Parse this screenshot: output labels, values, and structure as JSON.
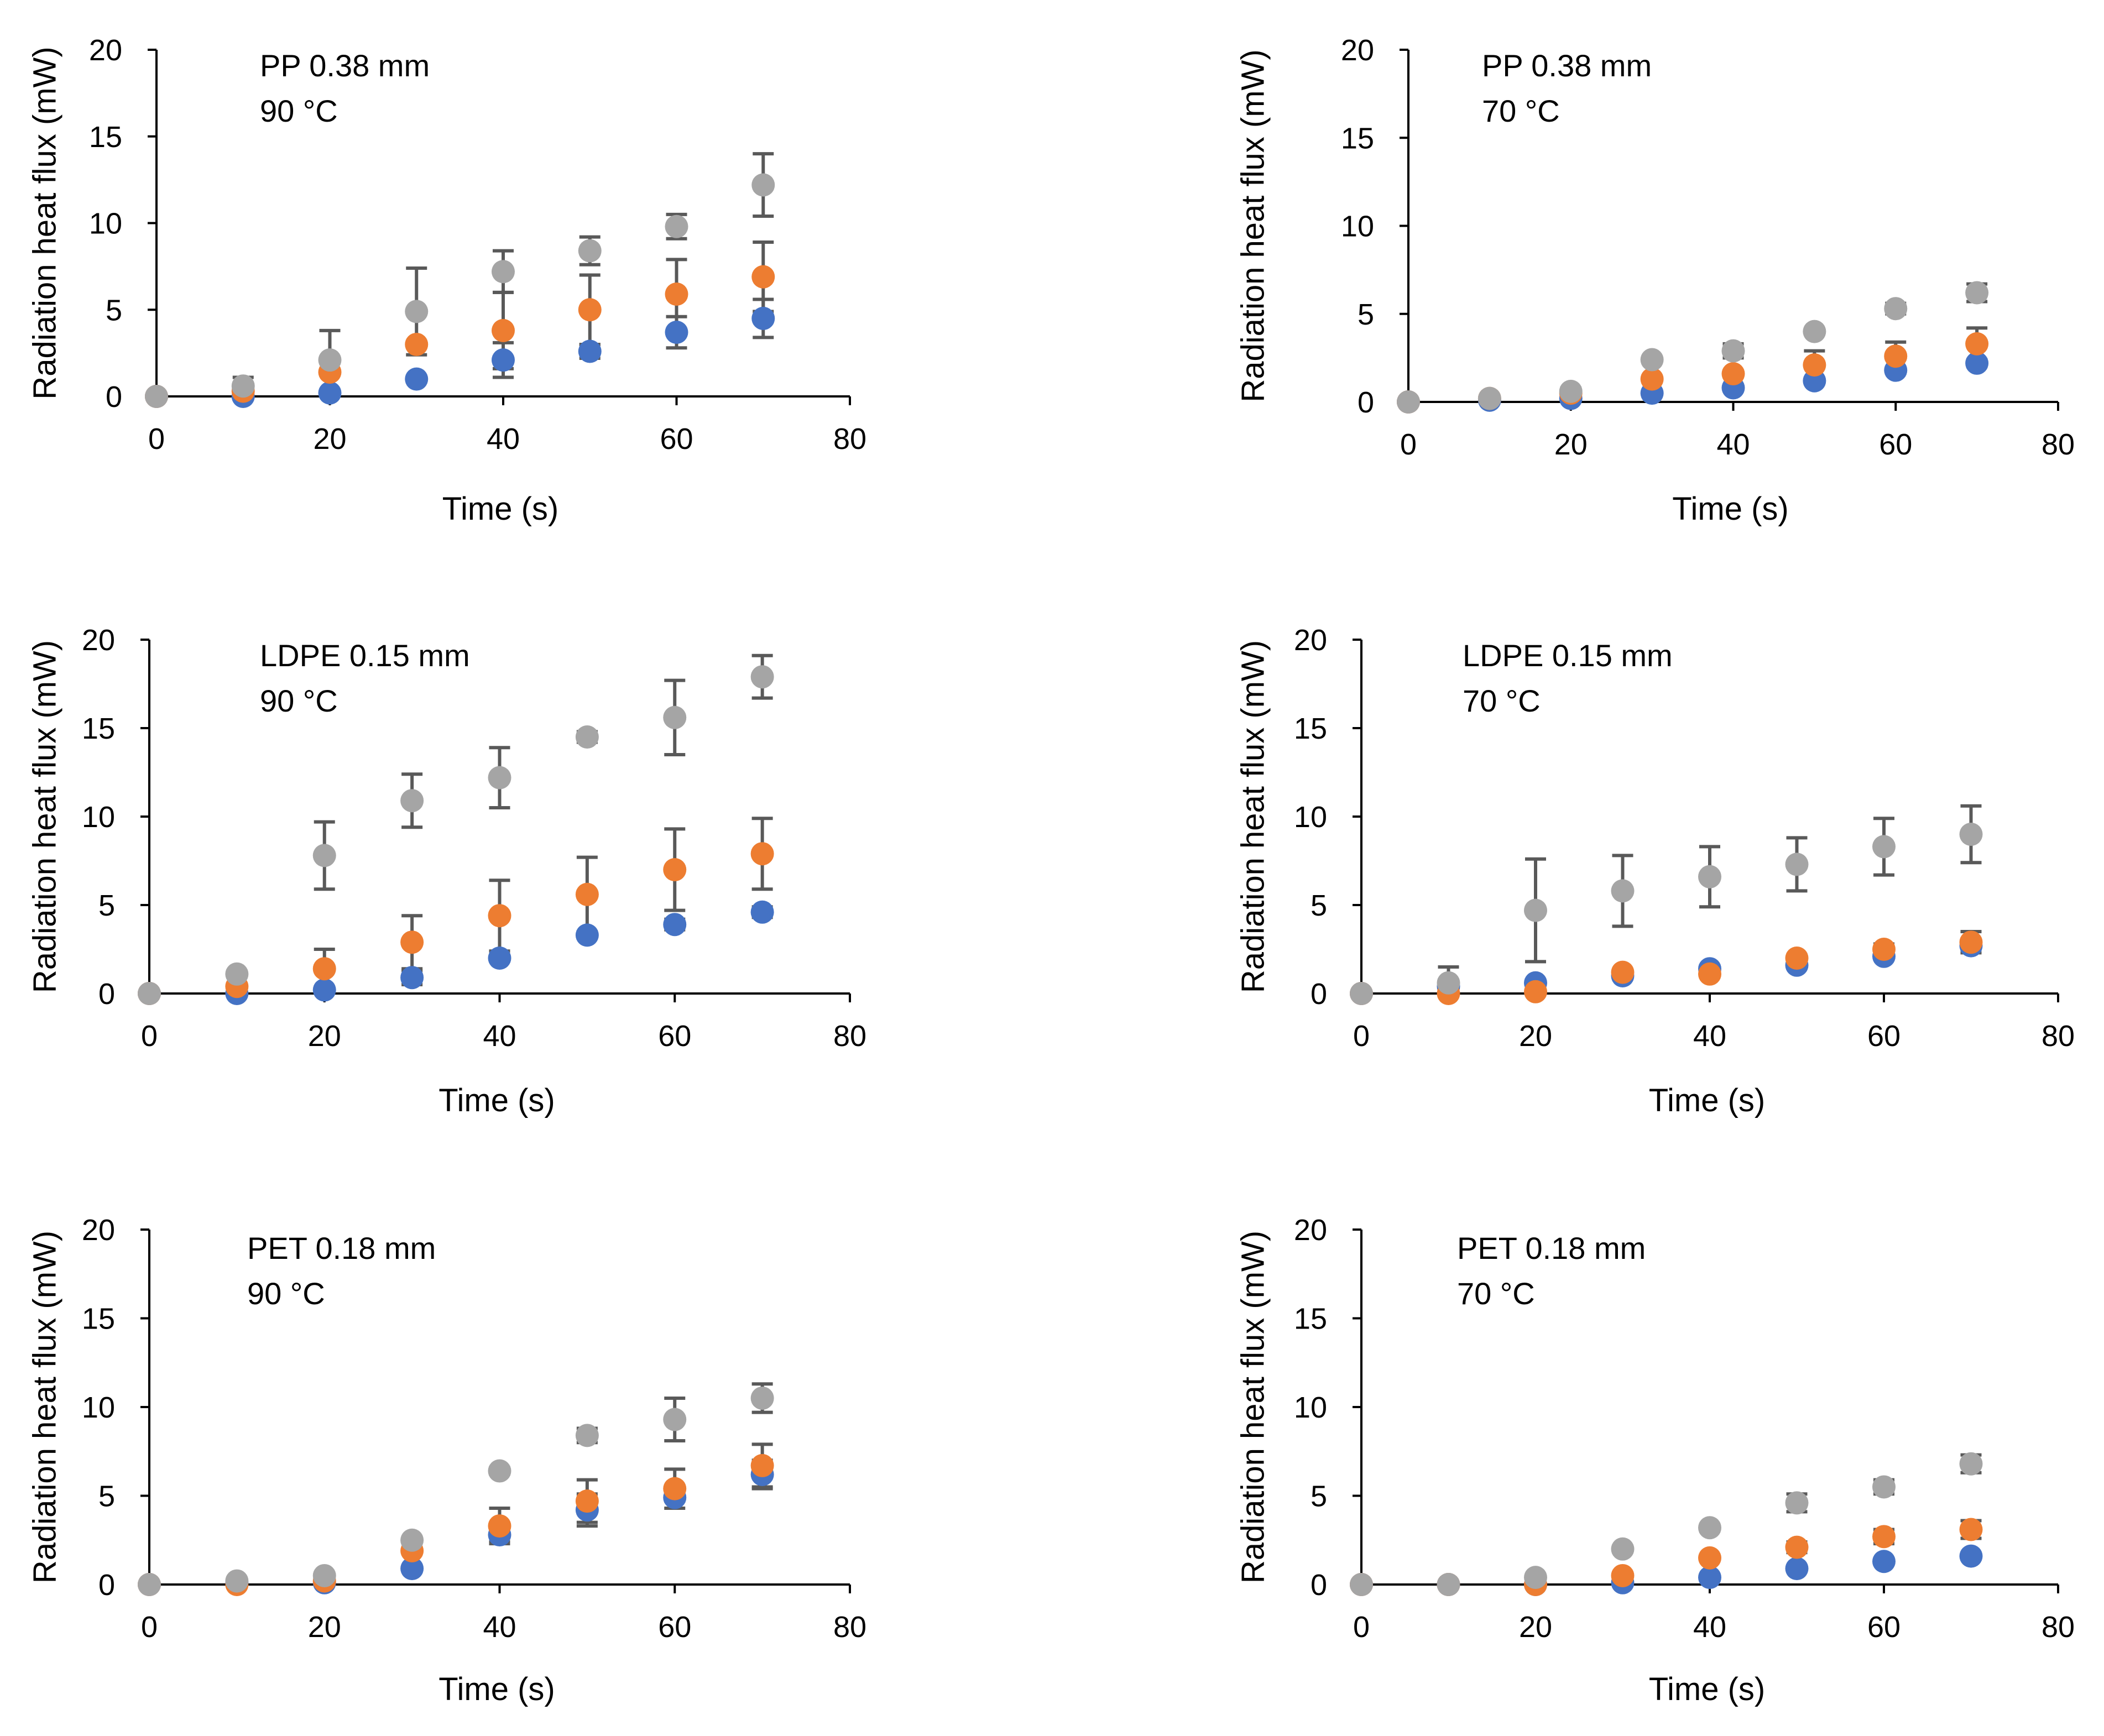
{
  "chart_data": [
    {
      "type": "scatter",
      "annotation": [
        "PP 0.38 mm",
        "90 °C"
      ],
      "xlabel": "Time (s)",
      "ylabel": "Radiation heat flux (mW)",
      "xlim": [
        0,
        80
      ],
      "ylim": [
        0,
        20
      ],
      "xticks": [
        "0",
        "20",
        "40",
        "60",
        "80"
      ],
      "yticks": [
        "0",
        "5",
        "10",
        "15",
        "20"
      ],
      "x": [
        0,
        10,
        20,
        30,
        40,
        50,
        60,
        70
      ],
      "series": [
        {
          "name": "blue",
          "color": "#4472C4",
          "values": [
            0,
            0,
            0.2,
            1.0,
            2.1,
            2.6,
            3.7,
            4.5
          ],
          "errors": [
            0,
            0,
            0,
            0,
            1.0,
            0.4,
            0.9,
            1.1
          ]
        },
        {
          "name": "orange",
          "color": "#ED7D31",
          "values": [
            0,
            0.3,
            1.4,
            3.0,
            3.8,
            5.0,
            5.9,
            6.9
          ],
          "errors": [
            0,
            0,
            0,
            0,
            2.2,
            2.0,
            2.0,
            2.0
          ]
        },
        {
          "name": "gray",
          "color": "#A5A5A5",
          "values": [
            0,
            0.6,
            2.1,
            4.9,
            7.2,
            8.4,
            9.8,
            12.2
          ],
          "errors": [
            0,
            0.5,
            1.7,
            2.5,
            1.2,
            0.8,
            0.7,
            1.8
          ]
        }
      ]
    },
    {
      "type": "scatter",
      "annotation": [
        "PP 0.38 mm",
        "70 °C"
      ],
      "xlabel": "Time (s)",
      "ylabel": "Radiation heat flux (mW)",
      "xlim": [
        0,
        80
      ],
      "ylim": [
        0,
        20
      ],
      "xticks": [
        "0",
        "20",
        "40",
        "60",
        "80"
      ],
      "yticks": [
        "0",
        "5",
        "10",
        "15",
        "20"
      ],
      "x": [
        0,
        10,
        20,
        30,
        40,
        50,
        60,
        70
      ],
      "series": [
        {
          "name": "blue",
          "color": "#4472C4",
          "values": [
            0,
            0.1,
            0.2,
            0.5,
            0.8,
            1.2,
            1.8,
            2.2
          ],
          "errors": [
            0,
            0,
            0,
            0,
            0,
            0,
            0,
            0.2
          ]
        },
        {
          "name": "orange",
          "color": "#ED7D31",
          "values": [
            0,
            0.2,
            0.5,
            1.3,
            1.6,
            2.1,
            2.6,
            3.3
          ],
          "errors": [
            0,
            0,
            0,
            0,
            0,
            0.8,
            0.8,
            0.9
          ]
        },
        {
          "name": "gray",
          "color": "#A5A5A5",
          "values": [
            0,
            0.2,
            0.6,
            2.4,
            2.9,
            4.0,
            5.3,
            6.2
          ],
          "errors": [
            0,
            0,
            0.2,
            0,
            0.4,
            0,
            0.3,
            0.5
          ]
        }
      ]
    },
    {
      "type": "scatter",
      "annotation": [
        "LDPE 0.15 mm",
        "90 °C"
      ],
      "xlabel": "Time (s)",
      "ylabel": "Radiation heat flux (mW)",
      "xlim": [
        0,
        80
      ],
      "ylim": [
        0,
        20
      ],
      "xticks": [
        "0",
        "20",
        "40",
        "60",
        "80"
      ],
      "yticks": [
        "0",
        "5",
        "10",
        "15",
        "20"
      ],
      "x": [
        0,
        10,
        20,
        30,
        40,
        50,
        60,
        70
      ],
      "series": [
        {
          "name": "blue",
          "color": "#4472C4",
          "values": [
            0,
            0,
            0.2,
            0.9,
            2.0,
            3.3,
            3.9,
            4.6
          ],
          "errors": [
            0,
            0,
            0,
            0.4,
            0,
            0,
            0.3,
            0.3
          ]
        },
        {
          "name": "orange",
          "color": "#ED7D31",
          "values": [
            0,
            0.4,
            1.4,
            2.9,
            4.4,
            5.6,
            7.0,
            7.9
          ],
          "errors": [
            0,
            0,
            1.1,
            1.5,
            2.0,
            2.1,
            2.3,
            2.0
          ]
        },
        {
          "name": "gray",
          "color": "#A5A5A5",
          "values": [
            0,
            1.1,
            7.8,
            10.9,
            12.2,
            14.5,
            15.6,
            17.9
          ],
          "errors": [
            0,
            0,
            1.9,
            1.5,
            1.7,
            0.3,
            2.1,
            1.2
          ]
        }
      ]
    },
    {
      "type": "scatter",
      "annotation": [
        "LDPE 0.15 mm",
        "70 °C"
      ],
      "xlabel": "Time (s)",
      "ylabel": "Radiation heat flux (mW)",
      "xlim": [
        0,
        80
      ],
      "ylim": [
        0,
        20
      ],
      "xticks": [
        "0",
        "20",
        "40",
        "60",
        "80"
      ],
      "yticks": [
        "0",
        "5",
        "10",
        "15",
        "20"
      ],
      "x": [
        0,
        10,
        20,
        30,
        40,
        50,
        60,
        70
      ],
      "series": [
        {
          "name": "blue",
          "color": "#4472C4",
          "values": [
            0,
            0.4,
            0.6,
            1.0,
            1.4,
            1.6,
            2.1,
            2.7
          ],
          "errors": [
            0,
            0,
            0,
            0,
            0,
            0,
            0,
            0.2
          ]
        },
        {
          "name": "orange",
          "color": "#ED7D31",
          "values": [
            0,
            0,
            0.1,
            1.2,
            1.1,
            2.0,
            2.5,
            2.9
          ],
          "errors": [
            0,
            0,
            0,
            0,
            0,
            0.2,
            0.3,
            0.6
          ]
        },
        {
          "name": "gray",
          "color": "#A5A5A5",
          "values": [
            0,
            0.6,
            4.7,
            5.8,
            6.6,
            7.3,
            8.3,
            9.0
          ],
          "errors": [
            0,
            0.9,
            2.9,
            2.0,
            1.7,
            1.5,
            1.6,
            1.6
          ]
        }
      ]
    },
    {
      "type": "scatter",
      "annotation": [
        "PET 0.18 mm",
        "90 °C"
      ],
      "xlabel": "Time (s)",
      "ylabel": "Radiation heat flux (mW)",
      "xlim": [
        0,
        80
      ],
      "ylim": [
        0,
        20
      ],
      "xticks": [
        "0",
        "20",
        "40",
        "60",
        "80"
      ],
      "yticks": [
        "0",
        "5",
        "10",
        "15",
        "20"
      ],
      "x": [
        0,
        10,
        20,
        30,
        40,
        50,
        60,
        70
      ],
      "series": [
        {
          "name": "blue",
          "color": "#4472C4",
          "values": [
            0,
            0.1,
            0.1,
            0.9,
            2.8,
            4.2,
            4.9,
            6.2
          ],
          "errors": [
            0,
            0,
            0,
            0,
            0.4,
            0.9,
            0.2,
            0.8
          ]
        },
        {
          "name": "orange",
          "color": "#ED7D31",
          "values": [
            0,
            0,
            0.2,
            1.9,
            3.3,
            4.7,
            5.4,
            6.7
          ],
          "errors": [
            0,
            0,
            0,
            0,
            1.0,
            1.2,
            1.1,
            1.2
          ]
        },
        {
          "name": "gray",
          "color": "#A5A5A5",
          "values": [
            0,
            0.2,
            0.5,
            2.5,
            6.4,
            8.4,
            9.3,
            10.5
          ],
          "errors": [
            0,
            0,
            0,
            0,
            0.2,
            0.4,
            1.2,
            0.8
          ]
        }
      ]
    },
    {
      "type": "scatter",
      "annotation": [
        "PET 0.18 mm",
        "70 °C"
      ],
      "xlabel": "Time (s)",
      "ylabel": "Radiation heat flux (mW)",
      "xlim": [
        0,
        80
      ],
      "ylim": [
        0,
        20
      ],
      "xticks": [
        "0",
        "20",
        "40",
        "60",
        "80"
      ],
      "yticks": [
        "0",
        "5",
        "10",
        "15",
        "20"
      ],
      "x": [
        0,
        10,
        20,
        30,
        40,
        50,
        60,
        70
      ],
      "series": [
        {
          "name": "blue",
          "color": "#4472C4",
          "values": [
            0,
            0,
            0,
            0.1,
            0.4,
            0.9,
            1.3,
            1.6
          ],
          "errors": [
            0,
            0,
            0,
            0,
            0,
            0,
            0,
            0
          ]
        },
        {
          "name": "orange",
          "color": "#ED7D31",
          "values": [
            0,
            0,
            0,
            0.5,
            1.5,
            2.1,
            2.7,
            3.1
          ],
          "errors": [
            0,
            0,
            0,
            0,
            0,
            0.3,
            0.4,
            0.5
          ]
        },
        {
          "name": "gray",
          "color": "#A5A5A5",
          "values": [
            0,
            0,
            0.4,
            2.0,
            3.2,
            4.6,
            5.5,
            6.8
          ],
          "errors": [
            0,
            0,
            0,
            0.1,
            0.2,
            0.5,
            0.4,
            0.5
          ]
        }
      ]
    }
  ]
}
